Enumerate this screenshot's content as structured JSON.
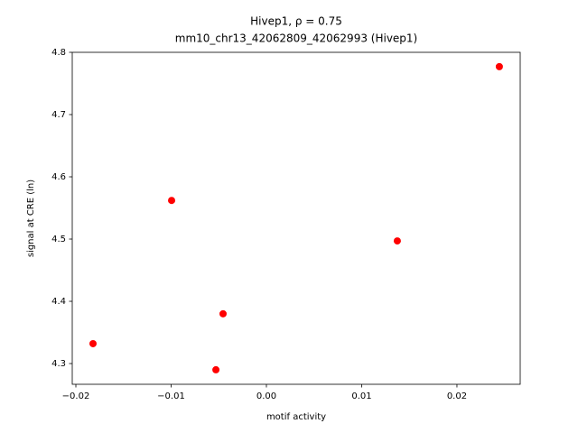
{
  "chart_data": {
    "type": "scatter",
    "title": "Hivep1, ρ = 0.75",
    "subtitle": "mm10_chr13_42062809_42062993 (Hivep1)",
    "x_label": "motif activity",
    "y_label": "signal at CRE (ln)",
    "color": "#ff0000",
    "x": [
      -0.0182,
      -0.00995,
      -0.0053,
      -0.00455,
      0.01374,
      0.02445
    ],
    "values": [
      4.332,
      4.562,
      4.29,
      4.38,
      4.497,
      4.777
    ],
    "xlim": [
      -0.02038,
      0.02664
    ],
    "ylim": [
      4.2667,
      4.8
    ],
    "xticks": [
      {
        "value": -0.02,
        "label": "−0.02"
      },
      {
        "value": -0.01,
        "label": "−0.01"
      },
      {
        "value": 0,
        "label": "0.00"
      },
      0.01,
      0.02
    ],
    "yticks": [
      4.3,
      4.4,
      4.5,
      4.6,
      4.7,
      4.8
    ],
    "grid": false
  }
}
